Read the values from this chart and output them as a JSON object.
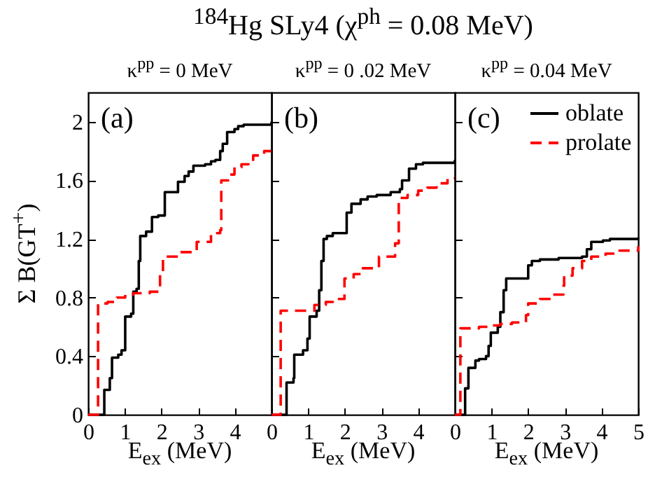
{
  "chart_data": [
    {
      "type": "step",
      "title": "$^{184}$Hg  SLy4 (χ$^{ph}$ = 0.08 MeV)",
      "subtitle": "κ$^{pp}$ = 0 MeV",
      "xlabel": "E$_{ex}$  (MeV)",
      "ylabel": "Σ B(GT$^{+}$)",
      "annotations": [
        "(a)"
      ],
      "xlim": [
        0,
        5
      ],
      "ylim": [
        0,
        2.2
      ],
      "xticks": [
        0,
        1,
        2,
        3,
        4,
        {
          "value": 5,
          "label": null
        }
      ],
      "yticks": [
        0,
        0.4,
        0.8,
        1.2,
        1.6,
        2
      ],
      "grid": false,
      "marker": "none",
      "series": [
        {
          "color": "#000000",
          "line_style": "solid",
          "x": [
            0,
            0.44,
            0.59,
            0.65,
            0.82,
            0.91,
            1.01,
            1.17,
            1.23,
            1.32,
            1.38,
            1.42,
            1.58,
            1.74,
            1.91,
            2.09,
            2.45,
            2.63,
            2.74,
            2.87,
            3.19,
            3.35,
            3.47,
            3.6,
            3.67,
            3.79,
            3.99,
            4.09,
            4.24,
            5
          ],
          "values": [
            0,
            0.17,
            0.25,
            0.39,
            0.41,
            0.44,
            0.67,
            0.69,
            0.84,
            0.86,
            1.05,
            1.22,
            1.25,
            1.35,
            1.36,
            1.52,
            1.59,
            1.63,
            1.66,
            1.7,
            1.71,
            1.73,
            1.74,
            1.8,
            1.85,
            1.93,
            1.95,
            1.97,
            1.98,
            2.0
          ]
        },
        {
          "color": "#ff0000",
          "line_style": "dashed",
          "x": [
            0,
            0.27,
            0.53,
            0.78,
            1.01,
            1.23,
            1.68,
            1.96,
            2.04,
            2.51,
            2.96,
            3.35,
            3.6,
            3.63,
            3.86,
            3.99,
            4.18,
            4.37,
            4.5,
            4.8,
            5
          ],
          "values": [
            0,
            0.76,
            0.77,
            0.8,
            0.82,
            0.83,
            0.84,
            0.96,
            1.08,
            1.11,
            1.18,
            1.24,
            1.26,
            1.6,
            1.64,
            1.69,
            1.71,
            1.74,
            1.77,
            1.8,
            1.82
          ]
        }
      ]
    },
    {
      "type": "step",
      "subtitle": "κ$^{pp}$ = 0 .02 MeV",
      "xlabel": "E$_{ex}$  (MeV)",
      "annotations": [
        "(b)"
      ],
      "xlim": [
        0,
        5
      ],
      "ylim": [
        0,
        2.2
      ],
      "xticks": [
        0,
        1,
        2,
        3,
        4,
        {
          "value": 5,
          "label": null
        }
      ],
      "yticks": [
        0,
        0.4,
        0.8,
        1.2,
        1.6,
        2
      ],
      "tick_labels": "x",
      "grid": false,
      "marker": "none",
      "series": [
        {
          "color": "#000000",
          "line_style": "solid",
          "x": [
            0,
            0.41,
            0.6,
            0.62,
            0.86,
            0.98,
            1.04,
            1.23,
            1.3,
            1.36,
            1.42,
            1.51,
            1.67,
            2.05,
            2.18,
            2.43,
            2.62,
            2.87,
            3.25,
            3.5,
            3.56,
            3.75,
            3.94,
            4.13,
            5
          ],
          "values": [
            0,
            0.22,
            0.25,
            0.41,
            0.44,
            0.52,
            0.67,
            0.71,
            0.85,
            1.05,
            1.2,
            1.22,
            1.24,
            1.38,
            1.44,
            1.47,
            1.49,
            1.5,
            1.52,
            1.54,
            1.6,
            1.68,
            1.71,
            1.72,
            1.74
          ]
        },
        {
          "color": "#ff0000",
          "line_style": "dashed",
          "x": [
            0,
            0.25,
            1.17,
            1.48,
            1.67,
            1.99,
            2.24,
            2.49,
            2.93,
            3.37,
            3.47,
            3.71,
            4.0,
            4.25,
            4.5,
            4.8,
            5
          ],
          "values": [
            0,
            0.71,
            0.75,
            0.77,
            0.79,
            0.93,
            0.96,
            1.0,
            1.08,
            1.17,
            1.48,
            1.5,
            1.53,
            1.55,
            1.58,
            1.61,
            1.62
          ]
        }
      ]
    },
    {
      "type": "step",
      "subtitle": "κ$^{pp}$ = 0.04 MeV",
      "xlabel": "E$_{ex}$  (MeV)",
      "annotations": [
        "(c)"
      ],
      "xlim": [
        0,
        5
      ],
      "ylim": [
        0,
        2.2
      ],
      "xticks": [
        0,
        1,
        2,
        3,
        4,
        5
      ],
      "yticks": [
        0,
        0.4,
        0.8,
        1.2,
        1.6,
        2
      ],
      "tick_labels": "x",
      "grid": false,
      "marker": "none",
      "legend": "top right",
      "series": [
        {
          "name": "oblate",
          "color": "#000000",
          "line_style": "solid",
          "x": [
            0,
            0.28,
            0.37,
            0.56,
            0.66,
            0.85,
            0.92,
            0.98,
            1.17,
            1.24,
            1.33,
            1.4,
            2.0,
            2.1,
            2.32,
            2.83,
            3.47,
            3.6,
            3.72,
            4.04,
            4.23,
            5
          ],
          "values": [
            0,
            0.18,
            0.32,
            0.37,
            0.38,
            0.4,
            0.47,
            0.56,
            0.6,
            0.7,
            0.85,
            0.93,
            1.02,
            1.05,
            1.06,
            1.07,
            1.08,
            1.13,
            1.18,
            1.19,
            1.2,
            1.21
          ]
        },
        {
          "name": "prolate",
          "color": "#ff0000",
          "line_style": "dashed",
          "x": [
            0,
            0.15,
            0.41,
            0.66,
            0.92,
            1.24,
            1.56,
            1.94,
            2.0,
            2.32,
            2.64,
            2.96,
            2.98,
            3.21,
            3.47,
            3.72,
            4.11,
            4.49,
            5
          ],
          "values": [
            0,
            0.59,
            0.59,
            0.6,
            0.61,
            0.62,
            0.63,
            0.68,
            0.76,
            0.79,
            0.82,
            0.88,
            0.95,
            1.0,
            1.05,
            1.08,
            1.1,
            1.12,
            1.15
          ]
        }
      ]
    }
  ]
}
